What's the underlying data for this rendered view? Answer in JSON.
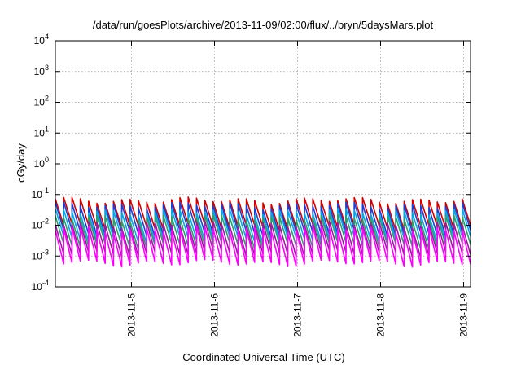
{
  "chart_data": {
    "type": "line",
    "title": "/data/run/goesPlots/archive/2013-11-09/02:00/flux/../bryn/5daysMars.plot",
    "xlabel": "Coordinated Universal Time (UTC)",
    "ylabel": "cGy/day",
    "yscale": "log",
    "ylim": [
      0.0001,
      10000
    ],
    "xlim": [
      "2013-11-04 02:00",
      "2013-11-09 02:00"
    ],
    "grid": true,
    "x_ticks": [
      "2013-11-5",
      "2013-11-6",
      "2013-11-7",
      "2013-11-8",
      "2013-11-9"
    ],
    "y_ticks": [
      {
        "base": "10",
        "exp": "4",
        "value": 10000
      },
      {
        "base": "10",
        "exp": "3",
        "value": 1000
      },
      {
        "base": "10",
        "exp": "2",
        "value": 100
      },
      {
        "base": "10",
        "exp": "1",
        "value": 10
      },
      {
        "base": "10",
        "exp": "0",
        "value": 1
      },
      {
        "base": "10",
        "exp": "-1",
        "value": 0.1
      },
      {
        "base": "10",
        "exp": "-2",
        "value": 0.01
      },
      {
        "base": "10",
        "exp": "-3",
        "value": 0.001
      },
      {
        "base": "10",
        "exp": "-4",
        "value": 0.0001
      }
    ],
    "sawtooth_period_hours": 2.4,
    "series": [
      {
        "color": "#d40000",
        "peak": 0.065,
        "trough": 0.009
      },
      {
        "color": "#1a3fd6",
        "peak": 0.045,
        "trough": 0.0055
      },
      {
        "color": "#00a8e8",
        "peak": 0.028,
        "trough": 0.0035
      },
      {
        "color": "#2aa06a",
        "peak": 0.018,
        "trough": 0.0022
      },
      {
        "color": "#9a1aa0",
        "peak": 0.011,
        "trough": 0.0012
      },
      {
        "color": "#ff00ff",
        "peak": 0.0075,
        "trough": 0.0006
      }
    ]
  }
}
